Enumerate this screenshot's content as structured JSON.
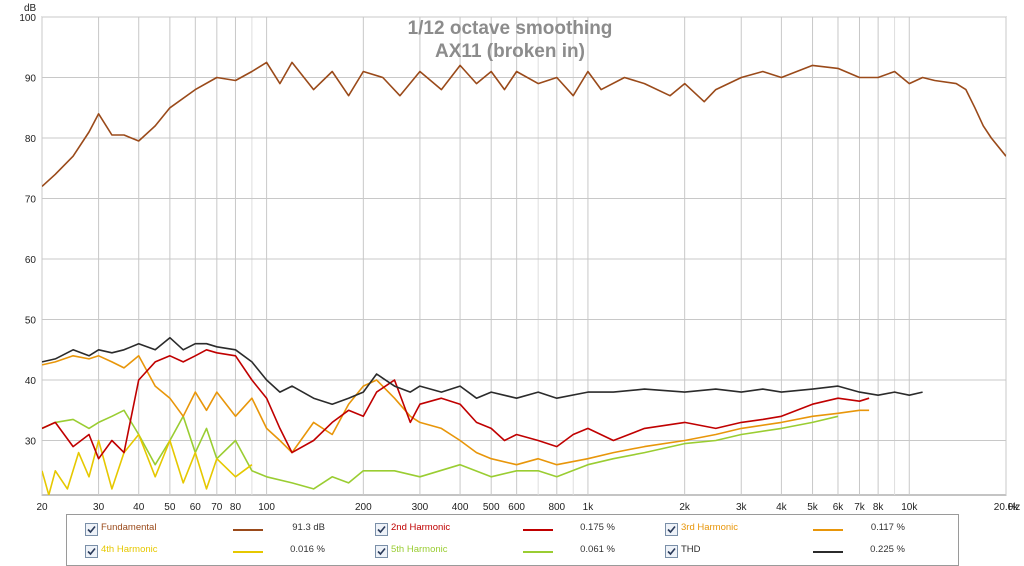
{
  "chart_data": {
    "type": "line",
    "title": "1/12 octave smoothing",
    "subtitle": "AX11 (broken in)",
    "ylabel": "dB",
    "xlabel": "Hz",
    "x_scale": "log",
    "xlim": [
      20,
      20000
    ],
    "ylim": [
      21,
      100
    ],
    "grid": true,
    "x_ticks": [
      {
        "value": 20,
        "label": "20"
      },
      {
        "value": 30,
        "label": "30"
      },
      {
        "value": 40,
        "label": "40"
      },
      {
        "value": 50,
        "label": "50"
      },
      {
        "value": 60,
        "label": "60"
      },
      {
        "value": 70,
        "label": "70"
      },
      {
        "value": 80,
        "label": "80"
      },
      {
        "value": 100,
        "label": "100"
      },
      {
        "value": 200,
        "label": "200"
      },
      {
        "value": 300,
        "label": "300"
      },
      {
        "value": 400,
        "label": "400"
      },
      {
        "value": 500,
        "label": "500"
      },
      {
        "value": 600,
        "label": "600"
      },
      {
        "value": 800,
        "label": "800"
      },
      {
        "value": 1000,
        "label": "1k"
      },
      {
        "value": 2000,
        "label": "2k"
      },
      {
        "value": 3000,
        "label": "3k"
      },
      {
        "value": 4000,
        "label": "4k"
      },
      {
        "value": 5000,
        "label": "5k"
      },
      {
        "value": 6000,
        "label": "6k"
      },
      {
        "value": 7000,
        "label": "7k"
      },
      {
        "value": 8000,
        "label": "8k"
      },
      {
        "value": 10000,
        "label": "10k"
      },
      {
        "value": 20000,
        "label": "20.0k"
      }
    ],
    "minor_x": [
      90,
      700,
      900,
      9000
    ],
    "y_ticks": [
      30,
      40,
      50,
      60,
      70,
      80,
      90,
      100
    ],
    "series": [
      {
        "name": "Fundamental",
        "color": "#9a4a1a",
        "value": "91.3 dB",
        "points": [
          [
            20,
            72
          ],
          [
            22,
            74
          ],
          [
            25,
            77
          ],
          [
            28,
            81
          ],
          [
            30,
            84
          ],
          [
            33,
            80.5
          ],
          [
            36,
            80.5
          ],
          [
            40,
            79.5
          ],
          [
            45,
            82
          ],
          [
            50,
            85
          ],
          [
            60,
            88
          ],
          [
            70,
            90
          ],
          [
            80,
            89.5
          ],
          [
            90,
            91
          ],
          [
            100,
            92.5
          ],
          [
            110,
            89
          ],
          [
            120,
            92.5
          ],
          [
            140,
            88
          ],
          [
            160,
            91
          ],
          [
            180,
            87
          ],
          [
            200,
            91
          ],
          [
            230,
            90
          ],
          [
            260,
            87
          ],
          [
            300,
            91
          ],
          [
            350,
            88
          ],
          [
            400,
            92
          ],
          [
            450,
            89
          ],
          [
            500,
            91
          ],
          [
            550,
            88
          ],
          [
            600,
            91
          ],
          [
            700,
            89
          ],
          [
            800,
            90
          ],
          [
            900,
            87
          ],
          [
            1000,
            91
          ],
          [
            1100,
            88
          ],
          [
            1300,
            90
          ],
          [
            1500,
            89
          ],
          [
            1800,
            87
          ],
          [
            2000,
            89
          ],
          [
            2300,
            86
          ],
          [
            2500,
            88
          ],
          [
            3000,
            90
          ],
          [
            3500,
            91
          ],
          [
            4000,
            90
          ],
          [
            5000,
            92
          ],
          [
            6000,
            91.5
          ],
          [
            7000,
            90
          ],
          [
            8000,
            90
          ],
          [
            9000,
            91
          ],
          [
            10000,
            89
          ],
          [
            11000,
            90
          ],
          [
            12000,
            89.5
          ],
          [
            14000,
            89
          ],
          [
            15000,
            88
          ],
          [
            16000,
            85
          ],
          [
            17000,
            82
          ],
          [
            18000,
            80
          ],
          [
            20000,
            77
          ]
        ]
      },
      {
        "name": "2nd Harmonic",
        "color": "#c00000",
        "value": "0.175 %",
        "points": [
          [
            20,
            32
          ],
          [
            22,
            33
          ],
          [
            25,
            29
          ],
          [
            28,
            31
          ],
          [
            30,
            27
          ],
          [
            33,
            30
          ],
          [
            36,
            28
          ],
          [
            40,
            40
          ],
          [
            45,
            43
          ],
          [
            50,
            44
          ],
          [
            55,
            43
          ],
          [
            60,
            44
          ],
          [
            65,
            45
          ],
          [
            70,
            44.5
          ],
          [
            80,
            44
          ],
          [
            90,
            40
          ],
          [
            100,
            37
          ],
          [
            110,
            32
          ],
          [
            120,
            28
          ],
          [
            140,
            30
          ],
          [
            160,
            33
          ],
          [
            180,
            35
          ],
          [
            200,
            34
          ],
          [
            220,
            38
          ],
          [
            250,
            40
          ],
          [
            280,
            33
          ],
          [
            300,
            36
          ],
          [
            350,
            37
          ],
          [
            400,
            36
          ],
          [
            450,
            33
          ],
          [
            500,
            32
          ],
          [
            550,
            30
          ],
          [
            600,
            31
          ],
          [
            700,
            30
          ],
          [
            800,
            29
          ],
          [
            900,
            31
          ],
          [
            1000,
            32
          ],
          [
            1200,
            30
          ],
          [
            1500,
            32
          ],
          [
            2000,
            33
          ],
          [
            2500,
            32
          ],
          [
            3000,
            33
          ],
          [
            3500,
            33.5
          ],
          [
            4000,
            34
          ],
          [
            5000,
            36
          ],
          [
            6000,
            37
          ],
          [
            7000,
            36.5
          ],
          [
            7500,
            37
          ]
        ]
      },
      {
        "name": "3rd Harmonic",
        "color": "#e8960a",
        "value": "0.117 %",
        "points": [
          [
            20,
            42.5
          ],
          [
            22,
            43
          ],
          [
            25,
            44
          ],
          [
            28,
            43.5
          ],
          [
            30,
            44
          ],
          [
            33,
            43
          ],
          [
            36,
            42
          ],
          [
            40,
            44
          ],
          [
            45,
            39
          ],
          [
            50,
            37
          ],
          [
            55,
            34
          ],
          [
            60,
            38
          ],
          [
            65,
            35
          ],
          [
            70,
            38
          ],
          [
            80,
            34
          ],
          [
            90,
            37
          ],
          [
            100,
            32
          ],
          [
            110,
            30
          ],
          [
            120,
            28
          ],
          [
            140,
            33
          ],
          [
            160,
            31
          ],
          [
            180,
            36
          ],
          [
            200,
            39
          ],
          [
            220,
            40
          ],
          [
            250,
            37
          ],
          [
            280,
            34
          ],
          [
            300,
            33
          ],
          [
            350,
            32
          ],
          [
            400,
            30
          ],
          [
            450,
            28
          ],
          [
            500,
            27
          ],
          [
            600,
            26
          ],
          [
            700,
            27
          ],
          [
            800,
            26
          ],
          [
            1000,
            27
          ],
          [
            1200,
            28
          ],
          [
            1500,
            29
          ],
          [
            2000,
            30
          ],
          [
            2500,
            31
          ],
          [
            3000,
            32
          ],
          [
            4000,
            33
          ],
          [
            5000,
            34
          ],
          [
            6000,
            34.5
          ],
          [
            7000,
            35
          ],
          [
            7500,
            35
          ]
        ]
      },
      {
        "name": "4th Harmonic",
        "color": "#e6c800",
        "value": "0.016 %",
        "points": [
          [
            20,
            25
          ],
          [
            21,
            21
          ],
          [
            22,
            25
          ],
          [
            24,
            22
          ],
          [
            26,
            28
          ],
          [
            28,
            24
          ],
          [
            30,
            30
          ],
          [
            33,
            22
          ],
          [
            36,
            28
          ],
          [
            40,
            31
          ],
          [
            45,
            24
          ],
          [
            50,
            30
          ],
          [
            55,
            23
          ],
          [
            60,
            28
          ],
          [
            65,
            22
          ],
          [
            70,
            27
          ],
          [
            80,
            24
          ],
          [
            90,
            26
          ]
        ]
      },
      {
        "name": "5th Harmonic",
        "color": "#9acd32",
        "value": "0.061 %",
        "points": [
          [
            20,
            32
          ],
          [
            22,
            33
          ],
          [
            25,
            33.5
          ],
          [
            28,
            32
          ],
          [
            30,
            33
          ],
          [
            33,
            34
          ],
          [
            36,
            35
          ],
          [
            40,
            31
          ],
          [
            45,
            26
          ],
          [
            50,
            30
          ],
          [
            55,
            34
          ],
          [
            60,
            28
          ],
          [
            65,
            32
          ],
          [
            70,
            27
          ],
          [
            80,
            30
          ],
          [
            90,
            25
          ],
          [
            100,
            24
          ],
          [
            120,
            23
          ],
          [
            140,
            22
          ],
          [
            160,
            24
          ],
          [
            180,
            23
          ],
          [
            200,
            25
          ],
          [
            250,
            25
          ],
          [
            300,
            24
          ],
          [
            400,
            26
          ],
          [
            500,
            24
          ],
          [
            600,
            25
          ],
          [
            700,
            25
          ],
          [
            800,
            24
          ],
          [
            1000,
            26
          ],
          [
            1200,
            27
          ],
          [
            1500,
            28
          ],
          [
            2000,
            29.5
          ],
          [
            2500,
            30
          ],
          [
            3000,
            31
          ],
          [
            4000,
            32
          ],
          [
            5000,
            33
          ],
          [
            6000,
            34
          ]
        ]
      },
      {
        "name": "THD",
        "color": "#2b2b2b",
        "value": "0.225 %",
        "points": [
          [
            20,
            43
          ],
          [
            22,
            43.5
          ],
          [
            25,
            45
          ],
          [
            28,
            44
          ],
          [
            30,
            45
          ],
          [
            33,
            44.5
          ],
          [
            36,
            45
          ],
          [
            40,
            46
          ],
          [
            45,
            45
          ],
          [
            50,
            47
          ],
          [
            55,
            45
          ],
          [
            60,
            46
          ],
          [
            65,
            46
          ],
          [
            70,
            45.5
          ],
          [
            80,
            45
          ],
          [
            90,
            43
          ],
          [
            100,
            40
          ],
          [
            110,
            38
          ],
          [
            120,
            39
          ],
          [
            140,
            37
          ],
          [
            160,
            36
          ],
          [
            180,
            37
          ],
          [
            200,
            38
          ],
          [
            220,
            41
          ],
          [
            250,
            39
          ],
          [
            280,
            38
          ],
          [
            300,
            39
          ],
          [
            350,
            38
          ],
          [
            400,
            39
          ],
          [
            450,
            37
          ],
          [
            500,
            38
          ],
          [
            600,
            37
          ],
          [
            700,
            38
          ],
          [
            800,
            37
          ],
          [
            1000,
            38
          ],
          [
            1200,
            38
          ],
          [
            1500,
            38.5
          ],
          [
            2000,
            38
          ],
          [
            2500,
            38.5
          ],
          [
            3000,
            38
          ],
          [
            3500,
            38.5
          ],
          [
            4000,
            38
          ],
          [
            5000,
            38.5
          ],
          [
            6000,
            39
          ],
          [
            7000,
            38
          ],
          [
            8000,
            37.5
          ],
          [
            9000,
            38
          ],
          [
            10000,
            37.5
          ],
          [
            11000,
            38
          ]
        ]
      }
    ]
  }
}
